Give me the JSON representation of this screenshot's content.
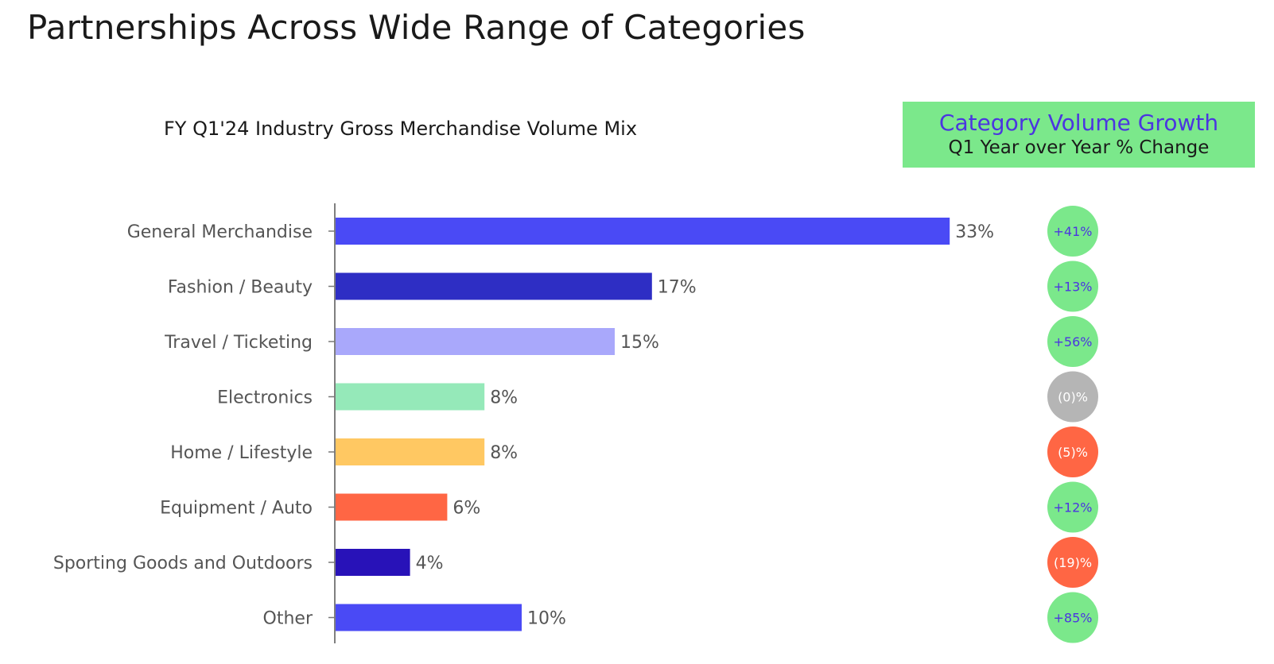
{
  "page": {
    "title": "Partnerships Across Wide Range of Categories"
  },
  "growth_panel": {
    "title": "Category Volume Growth",
    "subtitle": "Q1 Year over Year % Change",
    "background": "#7be88b",
    "title_color": "#4b35e0"
  },
  "chart_data": {
    "type": "bar",
    "orientation": "horizontal",
    "title": "FY Q1'24 Industry Gross Merchandise Volume Mix",
    "xlabel": "",
    "ylabel": "",
    "xlim": [
      0,
      40
    ],
    "grid": false,
    "categories": [
      "General Merchandise",
      "Fashion / Beauty",
      "Travel / Ticketing",
      "Electronics",
      "Home / Lifestyle",
      "Equipment / Auto",
      "Sporting Goods and Outdoors",
      "Other"
    ],
    "values": [
      33,
      17,
      15,
      8,
      8,
      6,
      4,
      10
    ],
    "value_labels": [
      "33%",
      "17%",
      "15%",
      "8%",
      "8%",
      "6%",
      "4%",
      "10%"
    ],
    "bar_colors": [
      "#4a4af5",
      "#2e2ec4",
      "#a9a8fb",
      "#95e9b9",
      "#ffc862",
      "#ff6644",
      "#2812b8",
      "#4a4af5"
    ],
    "growth": [
      {
        "label": "+41%",
        "value": 41,
        "color": "#7be88b",
        "text_color": "#4b35e0"
      },
      {
        "label": "+13%",
        "value": 13,
        "color": "#7be88b",
        "text_color": "#4b35e0"
      },
      {
        "label": "+56%",
        "value": 56,
        "color": "#7be88b",
        "text_color": "#4b35e0"
      },
      {
        "label": "(0)%",
        "value": 0,
        "color": "#b5b5b5",
        "text_color": "#ffffff"
      },
      {
        "label": "(5)%",
        "value": -5,
        "color": "#ff6644",
        "text_color": "#ffffff"
      },
      {
        "label": "+12%",
        "value": 12,
        "color": "#7be88b",
        "text_color": "#4b35e0"
      },
      {
        "label": "(19)%",
        "value": -19,
        "color": "#ff6644",
        "text_color": "#ffffff"
      },
      {
        "label": "+85%",
        "value": 85,
        "color": "#7be88b",
        "text_color": "#4b35e0"
      }
    ]
  }
}
